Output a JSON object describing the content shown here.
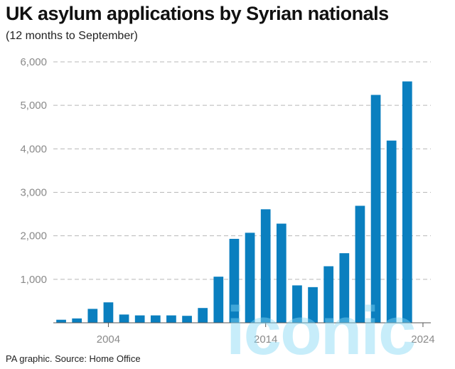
{
  "chart_data": {
    "type": "bar",
    "title": "UK asylum applications by Syrian nationals",
    "subtitle": "(12 months to September)",
    "source": "PA graphic. Source: Home Office",
    "xlabel": "",
    "ylabel": "",
    "categories": [
      2001,
      2002,
      2003,
      2004,
      2005,
      2006,
      2007,
      2008,
      2009,
      2010,
      2011,
      2012,
      2013,
      2014,
      2015,
      2016,
      2017,
      2018,
      2019,
      2020,
      2021,
      2022,
      2023,
      2024
    ],
    "values": [
      70,
      100,
      320,
      470,
      190,
      170,
      170,
      170,
      160,
      340,
      1060,
      1930,
      2070,
      2610,
      2280,
      860,
      820,
      1300,
      1600,
      2690,
      5240,
      4190,
      5550,
      0
    ],
    "ylim": [
      0,
      6000
    ],
    "yticks": [
      1000,
      2000,
      3000,
      4000,
      5000,
      6000
    ],
    "ytick_labels": [
      "1,000",
      "2,000",
      "3,000",
      "4,000",
      "5,000",
      "6,000"
    ],
    "xtick_labels": [
      "2004",
      "2014",
      "2024"
    ],
    "bar_color": "#0a7fbf",
    "grid": true
  },
  "watermark_text": "iconic"
}
